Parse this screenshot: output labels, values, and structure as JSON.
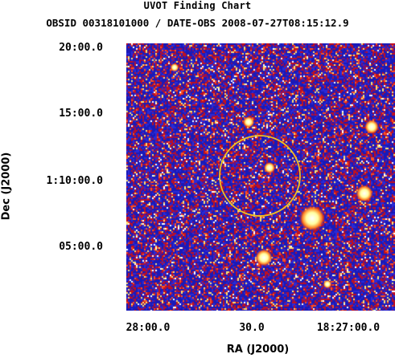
{
  "header": {
    "title": "UVOT Finding Chart",
    "subtitle": "OBSID 00318101000 / DATE-OBS 2008-07-27T08:15:12.9"
  },
  "axes": {
    "xlabel": "RA (J2000)",
    "ylabel": "Dec (J2000)",
    "xticks": [
      "28:00.0",
      "30.0",
      "18:27:00.0"
    ],
    "yticks": [
      "20:00.0",
      "15:00.0",
      "1:10:00.0",
      "05:00.0"
    ]
  },
  "colors": {
    "background_field": "#2020c0",
    "noise_red": "#d01010",
    "noise_white": "#ffffff",
    "noise_yellow": "#ffe060",
    "circle": "#f0c020"
  }
}
